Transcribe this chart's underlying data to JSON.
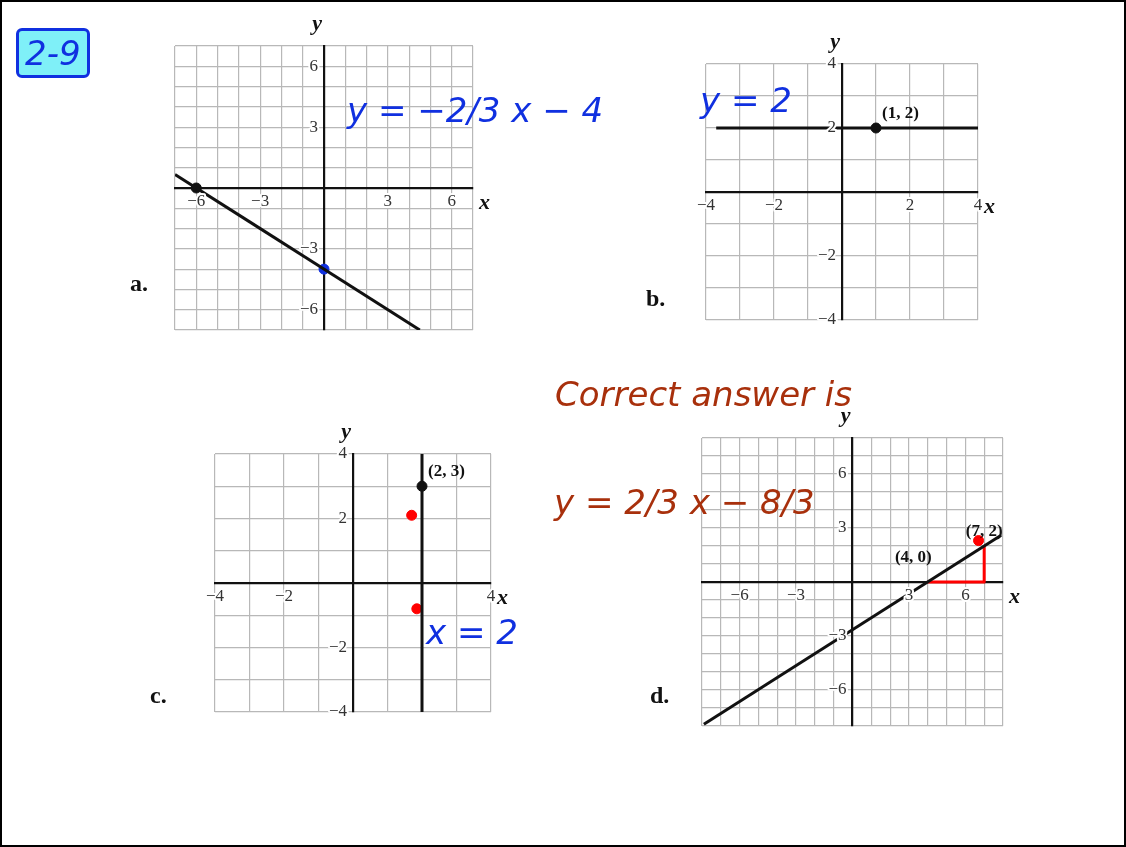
{
  "chart_data": [
    {
      "type": "line",
      "title": "a.",
      "xlabel": "x",
      "ylabel": "y",
      "xlim": [
        -7,
        7
      ],
      "ylim": [
        -7,
        7
      ],
      "grid": true,
      "xticks": [
        {
          "value": -7,
          "label": null
        },
        -6,
        {
          "value": -5,
          "label": null
        },
        {
          "value": -4,
          "label": null
        },
        -3,
        {
          "value": -2,
          "label": null
        },
        {
          "value": -1,
          "label": null
        },
        {
          "value": 0,
          "label": null
        },
        {
          "value": 1,
          "label": null
        },
        {
          "value": 2,
          "label": null
        },
        3,
        {
          "value": 4,
          "label": null
        },
        {
          "value": 5,
          "label": null
        },
        6,
        {
          "value": 7,
          "label": null
        }
      ],
      "yticks": [
        {
          "value": -7,
          "label": null
        },
        -6,
        {
          "value": -5,
          "label": null
        },
        {
          "value": -4,
          "label": null
        },
        -3,
        {
          "value": -2,
          "label": null
        },
        {
          "value": -1,
          "label": null
        },
        {
          "value": 0,
          "label": null
        },
        {
          "value": 1,
          "label": null
        },
        {
          "value": 2,
          "label": null
        },
        3,
        {
          "value": 4,
          "label": null
        },
        {
          "value": 5,
          "label": null
        },
        6,
        {
          "value": 7,
          "label": null
        }
      ],
      "series": [
        {
          "type": "line",
          "x": [
            -7,
            4.5
          ],
          "values": [
            0.67,
            -7
          ],
          "color": "#111111"
        },
        {
          "type": "scatter",
          "x": [
            -6
          ],
          "values": [
            0
          ],
          "color": "#111111"
        },
        {
          "type": "scatter",
          "x": [
            0
          ],
          "values": [
            -4
          ],
          "color": "#1030e0"
        }
      ],
      "annotations": [
        "2-9",
        "y = −2/3 x − 4"
      ]
    },
    {
      "type": "line",
      "title": "b.",
      "xlabel": "x",
      "ylabel": "y",
      "xlim": [
        -4,
        4
      ],
      "ylim": [
        -4,
        4
      ],
      "grid": true,
      "xticks": [
        -4,
        {
          "value": -3,
          "label": null
        },
        -2,
        {
          "value": -1,
          "label": null
        },
        {
          "value": 0,
          "label": null
        },
        {
          "value": 1,
          "label": null
        },
        2,
        {
          "value": 3,
          "label": null
        },
        4
      ],
      "yticks": [
        -4,
        {
          "value": -3,
          "label": null
        },
        -2,
        {
          "value": -1,
          "label": null
        },
        {
          "value": 0,
          "label": null
        },
        {
          "value": 1,
          "label": null
        },
        2,
        {
          "value": 3,
          "label": null
        },
        4
      ],
      "series": [
        {
          "type": "line",
          "x": [
            -3.7,
            4
          ],
          "values": [
            2,
            2
          ],
          "color": "#111111"
        },
        {
          "type": "scatter",
          "x": [
            1
          ],
          "values": [
            2
          ],
          "color": "#111111"
        }
      ],
      "annotations": [
        "y = 2",
        {
          "text": "(1, 2)",
          "x": 1,
          "y": 2
        }
      ]
    },
    {
      "type": "line",
      "title": "c.",
      "xlabel": "x",
      "ylabel": "y",
      "xlim": [
        -4,
        4
      ],
      "ylim": [
        -4,
        4
      ],
      "grid": true,
      "xticks": [
        -4,
        {
          "value": -3,
          "label": null
        },
        -2,
        {
          "value": -1,
          "label": null
        },
        {
          "value": 0,
          "label": null
        },
        {
          "value": 1,
          "label": null
        },
        {
          "value": 2,
          "label": null
        },
        {
          "value": 3,
          "label": null
        },
        4
      ],
      "yticks": [
        -4,
        {
          "value": -3,
          "label": null
        },
        -2,
        {
          "value": -1,
          "label": null
        },
        {
          "value": 0,
          "label": null
        },
        {
          "value": 1,
          "label": null
        },
        2,
        {
          "value": 3,
          "label": null
        },
        4
      ],
      "series": [
        {
          "type": "line",
          "x": [
            2,
            2
          ],
          "values": [
            -4,
            4
          ],
          "color": "#111111"
        },
        {
          "type": "scatter",
          "x": [
            2
          ],
          "values": [
            3
          ],
          "color": "#111111"
        },
        {
          "type": "scatter",
          "x": [
            1.7,
            1.85
          ],
          "values": [
            2.1,
            -0.8
          ],
          "color": "#ff0000"
        }
      ],
      "annotations": [
        {
          "text": "(2, 3)",
          "x": 2,
          "y": 3
        },
        "x = 2"
      ]
    },
    {
      "type": "line",
      "title": "d.",
      "xlabel": "x",
      "ylabel": "y",
      "xlim": [
        -8,
        8
      ],
      "ylim": [
        -8,
        8
      ],
      "grid": true,
      "xticks": [
        {
          "value": -8,
          "label": null
        },
        {
          "value": -7,
          "label": null
        },
        -6,
        {
          "value": -5,
          "label": null
        },
        {
          "value": -4,
          "label": null
        },
        -3,
        {
          "value": -2,
          "label": null
        },
        {
          "value": -1,
          "label": null
        },
        {
          "value": 0,
          "label": null
        },
        {
          "value": 1,
          "label": null
        },
        {
          "value": 2,
          "label": null
        },
        3,
        {
          "value": 4,
          "label": null
        },
        {
          "value": 5,
          "label": null
        },
        6,
        {
          "value": 7,
          "label": null
        },
        {
          "value": 8,
          "label": null
        }
      ],
      "yticks": [
        {
          "value": -8,
          "label": null
        },
        {
          "value": -7,
          "label": null
        },
        -6,
        {
          "value": -5,
          "label": null
        },
        {
          "value": -4,
          "label": null
        },
        -3,
        {
          "value": -2,
          "label": null
        },
        {
          "value": -1,
          "label": null
        },
        {
          "value": 0,
          "label": null
        },
        {
          "value": 1,
          "label": null
        },
        {
          "value": 2,
          "label": null
        },
        3,
        {
          "value": 4,
          "label": null
        },
        {
          "value": 5,
          "label": null
        },
        6,
        {
          "value": 7,
          "label": null
        },
        {
          "value": 8,
          "label": null
        }
      ],
      "series": [
        {
          "type": "line",
          "x": [
            -7.9,
            7.9
          ],
          "values": [
            -7.9,
            2.6
          ],
          "color": "#111111"
        },
        {
          "type": "line",
          "x": [
            4,
            7,
            7
          ],
          "values": [
            0,
            0,
            2
          ],
          "color": "#ff0000"
        },
        {
          "type": "scatter",
          "x": [
            6.7
          ],
          "values": [
            2.3
          ],
          "color": "#ff0000"
        }
      ],
      "annotations": [
        "Correct answer is",
        "y = 2/3 x − 8/3",
        {
          "text": "(4, 0)",
          "x": 4,
          "y": 0
        },
        {
          "text": "(7, 2)",
          "x": 7,
          "y": 2
        }
      ]
    }
  ]
}
